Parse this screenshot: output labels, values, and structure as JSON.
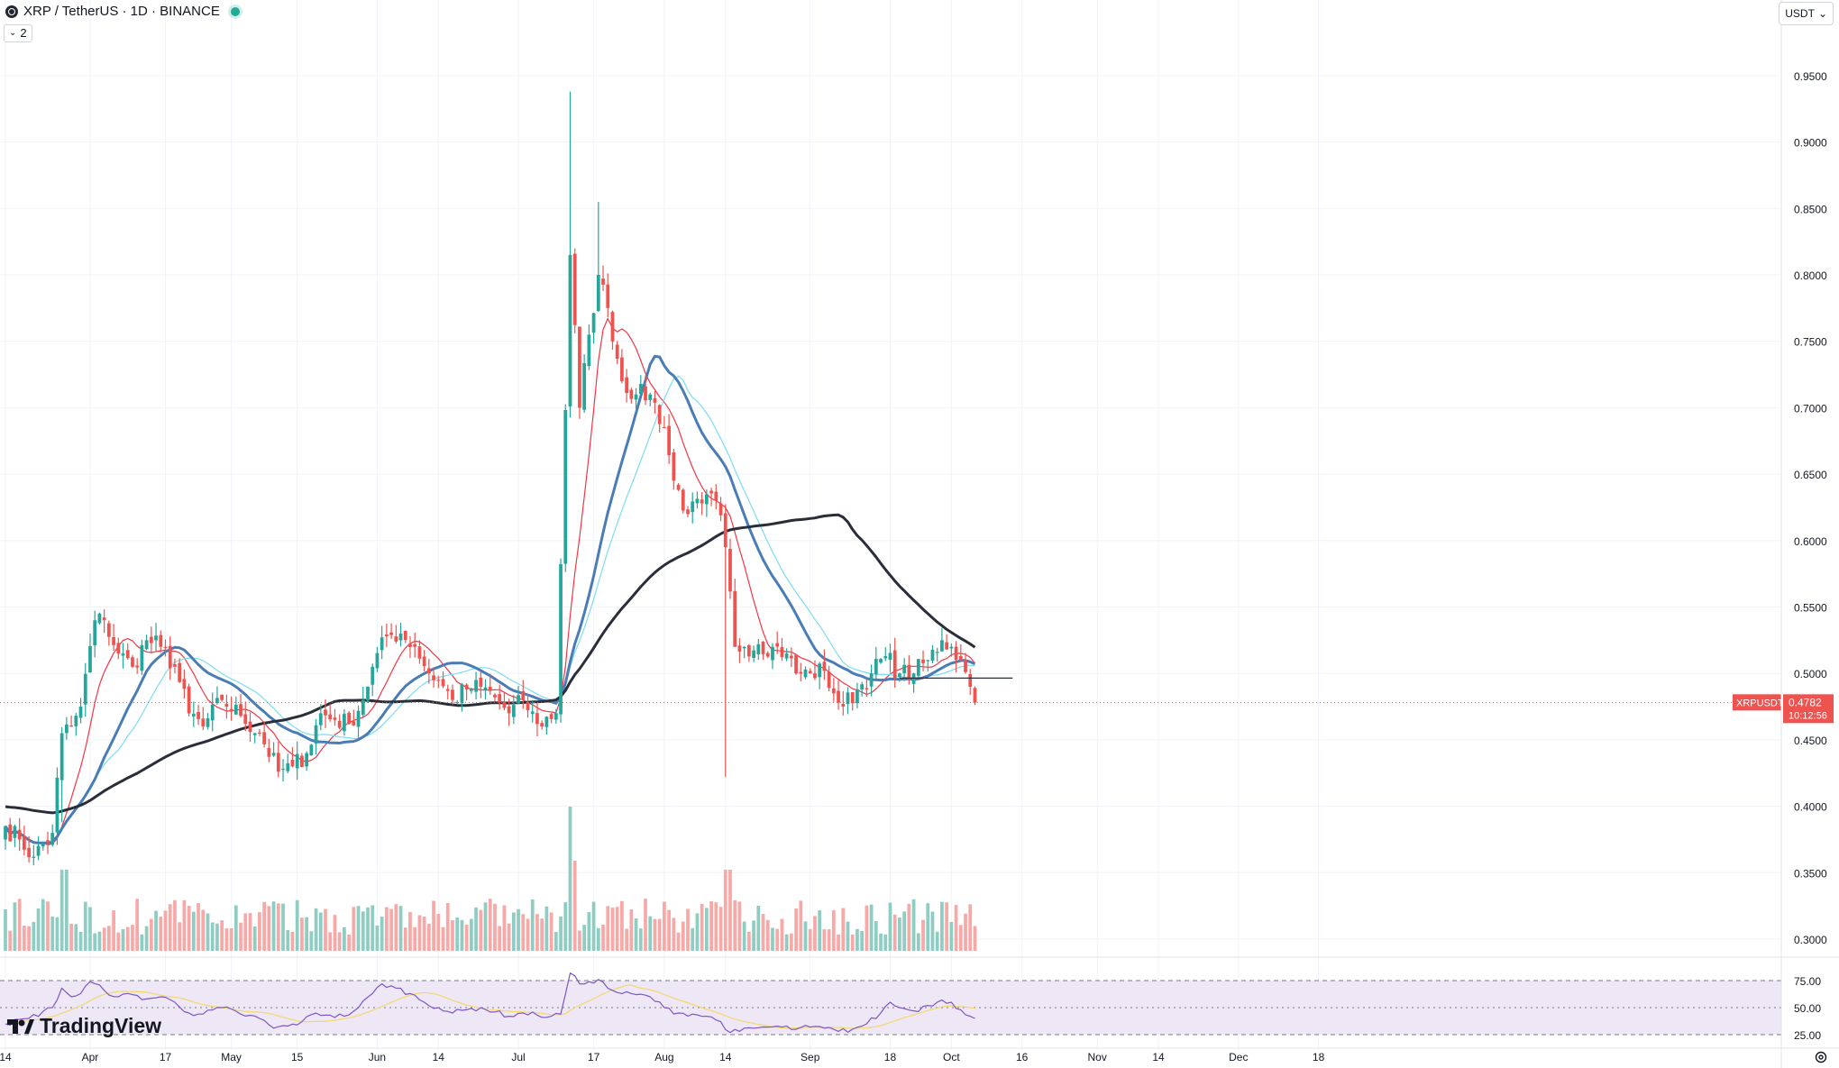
{
  "header": {
    "symbol": "XRP / TetherUS · 1D · BINANCE",
    "indicator_count": "2",
    "currency": "USDT"
  },
  "logo_text": "TradingView",
  "colors": {
    "up": "#26a69a",
    "down": "#ef5350",
    "vol_up": "#8fcdc3",
    "vol_down": "#f7a9a7",
    "ma_red": "#f23645",
    "ma_cyan": "#7ddcf0",
    "ma_blue": "#4a7cb5",
    "ma_black": "#2a2e39",
    "rsi_line": "#7e57c2",
    "rsi_ma": "#f5d76e",
    "rsi_band": "#ede7f6"
  },
  "chart_data": {
    "type": "candlestick",
    "symbol": "XRPUSDT",
    "price_axis": {
      "range": [
        0.2955,
        0.9775
      ],
      "ticks": [
        "0.9500",
        "0.9000",
        "0.8500",
        "0.8000",
        "0.7500",
        "0.7000",
        "0.6500",
        "0.6000",
        "0.5500",
        "0.5000",
        "0.4500",
        "0.4000",
        "0.3500",
        "0.3000"
      ]
    },
    "last_price": {
      "label": "XRPUSDT",
      "value": "0.4782",
      "countdown": "10:12:56"
    },
    "horizontal_level": 0.4965,
    "x_axis_labels": [
      {
        "label": "14",
        "day": 0
      },
      {
        "label": "Apr",
        "day": 18
      },
      {
        "label": "17",
        "day": 34
      },
      {
        "label": "May",
        "day": 48
      },
      {
        "label": "15",
        "day": 62
      },
      {
        "label": "Jun",
        "day": 79
      },
      {
        "label": "14",
        "day": 92
      },
      {
        "label": "Jul",
        "day": 109
      },
      {
        "label": "17",
        "day": 125
      },
      {
        "label": "Aug",
        "day": 140
      },
      {
        "label": "14",
        "day": 153
      },
      {
        "label": "Sep",
        "day": 171
      },
      {
        "label": "18",
        "day": 188
      },
      {
        "label": "Oct",
        "day": 201
      },
      {
        "label": "16",
        "day": 216
      },
      {
        "label": "Nov",
        "day": 232
      },
      {
        "label": "14",
        "day": 245
      },
      {
        "label": "Dec",
        "day": 262
      },
      {
        "label": "18",
        "day": 279
      }
    ],
    "total_days": 290,
    "key_points": [
      [
        0,
        0.385
      ],
      [
        3,
        0.375
      ],
      [
        6,
        0.362
      ],
      [
        10,
        0.38
      ],
      [
        12,
        0.455
      ],
      [
        14,
        0.46
      ],
      [
        16,
        0.475
      ],
      [
        19,
        0.54
      ],
      [
        21,
        0.54
      ],
      [
        24,
        0.515
      ],
      [
        27,
        0.505
      ],
      [
        30,
        0.525
      ],
      [
        33,
        0.52
      ],
      [
        36,
        0.505
      ],
      [
        39,
        0.47
      ],
      [
        42,
        0.46
      ],
      [
        46,
        0.48
      ],
      [
        50,
        0.468
      ],
      [
        54,
        0.455
      ],
      [
        58,
        0.426
      ],
      [
        61,
        0.43
      ],
      [
        64,
        0.44
      ],
      [
        67,
        0.47
      ],
      [
        70,
        0.465
      ],
      [
        73,
        0.462
      ],
      [
        76,
        0.48
      ],
      [
        78,
        0.505
      ],
      [
        81,
        0.528
      ],
      [
        84,
        0.53
      ],
      [
        87,
        0.52
      ],
      [
        90,
        0.5
      ],
      [
        92,
        0.495
      ],
      [
        95,
        0.48
      ],
      [
        98,
        0.488
      ],
      [
        101,
        0.49
      ],
      [
        104,
        0.482
      ],
      [
        107,
        0.47
      ],
      [
        110,
        0.48
      ],
      [
        113,
        0.462
      ],
      [
        117,
        0.47
      ],
      [
        120,
        0.815
      ],
      [
        122,
        0.7
      ],
      [
        124,
        0.755
      ],
      [
        126,
        0.8
      ],
      [
        128,
        0.775
      ],
      [
        131,
        0.72
      ],
      [
        134,
        0.71
      ],
      [
        137,
        0.71
      ],
      [
        140,
        0.685
      ],
      [
        142,
        0.645
      ],
      [
        145,
        0.62
      ],
      [
        148,
        0.628
      ],
      [
        151,
        0.63
      ],
      [
        153,
        0.595
      ],
      [
        155,
        0.52
      ],
      [
        157,
        0.52
      ],
      [
        160,
        0.522
      ],
      [
        163,
        0.52
      ],
      [
        166,
        0.515
      ],
      [
        168,
        0.5
      ],
      [
        171,
        0.5
      ],
      [
        174,
        0.502
      ],
      [
        176,
        0.485
      ],
      [
        178,
        0.475
      ],
      [
        181,
        0.488
      ],
      [
        184,
        0.5
      ],
      [
        187,
        0.513
      ],
      [
        190,
        0.5
      ],
      [
        193,
        0.5
      ],
      [
        196,
        0.51
      ],
      [
        199,
        0.525
      ],
      [
        201,
        0.52
      ],
      [
        203,
        0.51
      ],
      [
        205,
        0.49
      ],
      [
        206,
        0.478
      ]
    ],
    "moving_averages": [
      {
        "name": "MA-short",
        "color": "#f23645",
        "width": 1.2
      },
      {
        "name": "MA-cyan",
        "color": "#7ddcf0",
        "width": 1.2
      },
      {
        "name": "MA-mid",
        "color": "#4a7cb5",
        "width": 3
      },
      {
        "name": "MA-long",
        "color": "#2a2e39",
        "width": 3
      }
    ],
    "rsi": {
      "ticks": [
        "75.00",
        "50.00",
        "25.00"
      ],
      "band": [
        30,
        70
      ],
      "points": [
        [
          0,
          35
        ],
        [
          5,
          40
        ],
        [
          10,
          50
        ],
        [
          12,
          68
        ],
        [
          14,
          60
        ],
        [
          16,
          63
        ],
        [
          18,
          74
        ],
        [
          21,
          66
        ],
        [
          24,
          60
        ],
        [
          27,
          62
        ],
        [
          30,
          58
        ],
        [
          33,
          60
        ],
        [
          36,
          55
        ],
        [
          39,
          45
        ],
        [
          42,
          44
        ],
        [
          46,
          50
        ],
        [
          50,
          44
        ],
        [
          54,
          40
        ],
        [
          57,
          31
        ],
        [
          60,
          33
        ],
        [
          63,
          37
        ],
        [
          66,
          45
        ],
        [
          69,
          43
        ],
        [
          72,
          42
        ],
        [
          75,
          50
        ],
        [
          78,
          63
        ],
        [
          80,
          72
        ],
        [
          83,
          68
        ],
        [
          86,
          63
        ],
        [
          89,
          55
        ],
        [
          92,
          50
        ],
        [
          95,
          45
        ],
        [
          98,
          48
        ],
        [
          101,
          50
        ],
        [
          104,
          46
        ],
        [
          107,
          42
        ],
        [
          110,
          45
        ],
        [
          113,
          43
        ],
        [
          116,
          42
        ],
        [
          118,
          44
        ],
        [
          120,
          82
        ],
        [
          122,
          72
        ],
        [
          124,
          74
        ],
        [
          126,
          76
        ],
        [
          128,
          68
        ],
        [
          131,
          63
        ],
        [
          134,
          62
        ],
        [
          137,
          60
        ],
        [
          140,
          50
        ],
        [
          143,
          45
        ],
        [
          146,
          44
        ],
        [
          149,
          42
        ],
        [
          152,
          37
        ],
        [
          154,
          27
        ],
        [
          156,
          28
        ],
        [
          159,
          31
        ],
        [
          162,
          32
        ],
        [
          165,
          32
        ],
        [
          168,
          30
        ],
        [
          171,
          32
        ],
        [
          174,
          31
        ],
        [
          177,
          28
        ],
        [
          180,
          30
        ],
        [
          183,
          35
        ],
        [
          186,
          45
        ],
        [
          188,
          55
        ],
        [
          190,
          50
        ],
        [
          193,
          47
        ],
        [
          196,
          52
        ],
        [
          199,
          57
        ],
        [
          201,
          55
        ],
        [
          203,
          48
        ],
        [
          205,
          42
        ],
        [
          206,
          40
        ]
      ]
    }
  }
}
